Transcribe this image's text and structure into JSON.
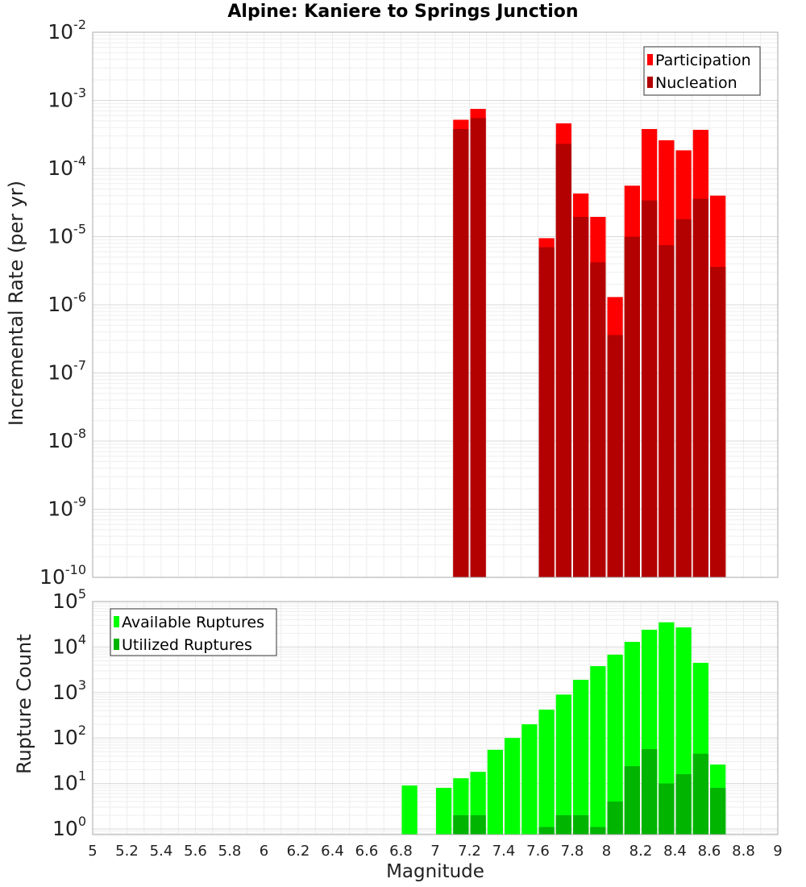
{
  "chart_data": [
    {
      "type": "bar",
      "title": "Alpine: Kaniere to Springs Junction",
      "xlabel": "",
      "ylabel": "Incremental Rate (per yr)",
      "yscale": "log",
      "xlim": [
        5,
        9
      ],
      "ylim": [
        1e-10,
        0.01
      ],
      "y_tick_exponents": [
        -10,
        -9,
        -8,
        -7,
        -6,
        -5,
        -4,
        -3,
        -2
      ],
      "grid": true,
      "legend_position": "top-right",
      "colors": {
        "Participation": "#ff0000",
        "Nucleation": "#b30000"
      },
      "x": [
        7.15,
        7.25,
        7.65,
        7.75,
        7.85,
        7.95,
        8.05,
        8.15,
        8.25,
        8.35,
        8.45,
        8.55,
        8.65
      ],
      "series": [
        {
          "name": "Participation",
          "values": [
            0.00052,
            0.00075,
            9.5e-06,
            0.00046,
            4.3e-05,
            1.95e-05,
            1.3e-06,
            5.6e-05,
            0.00038,
            0.00026,
            0.000185,
            0.00037,
            4e-05
          ]
        },
        {
          "name": "Nucleation",
          "values": [
            0.00038,
            0.00055,
            7e-06,
            0.00023,
            1.95e-05,
            4.2e-06,
            3.6e-07,
            1e-05,
            3.4e-05,
            7.5e-06,
            1.8e-05,
            3.6e-05,
            3.6e-06
          ]
        }
      ]
    },
    {
      "type": "bar",
      "title": "",
      "xlabel": "Magnitude",
      "ylabel": "Rupture Count",
      "yscale": "log",
      "xlim": [
        5,
        9
      ],
      "ylim": [
        0.75,
        100000.0
      ],
      "y_tick_exponents": [
        0,
        1,
        2,
        3,
        4,
        5
      ],
      "x_ticks": [
        "5",
        "5.2",
        "5.4",
        "5.6",
        "5.8",
        "6",
        "6.2",
        "6.4",
        "6.6",
        "6.8",
        "7",
        "7.2",
        "7.4",
        "7.6",
        "7.8",
        "8",
        "8.2",
        "8.4",
        "8.6",
        "8.8",
        "9"
      ],
      "grid": true,
      "legend_position": "top-left",
      "colors": {
        "Available Ruptures": "#00ff00",
        "Utilized Ruptures": "#00b400"
      },
      "x": [
        6.85,
        7.05,
        7.15,
        7.25,
        7.35,
        7.45,
        7.55,
        7.65,
        7.75,
        7.85,
        7.95,
        8.05,
        8.15,
        8.25,
        8.35,
        8.45,
        8.55,
        8.65
      ],
      "series": [
        {
          "name": "Available Ruptures",
          "values": [
            9,
            8,
            13,
            18,
            55,
            100,
            200,
            420,
            900,
            1900,
            3800,
            6800,
            13000,
            24000,
            35000,
            27000,
            4500,
            26
          ]
        },
        {
          "name": "Utilized Ruptures",
          "values": [
            0,
            0,
            2,
            2,
            0,
            0,
            0,
            1.1,
            2,
            2,
            1.1,
            4,
            24,
            57,
            10,
            16,
            45,
            8
          ]
        }
      ]
    }
  ]
}
